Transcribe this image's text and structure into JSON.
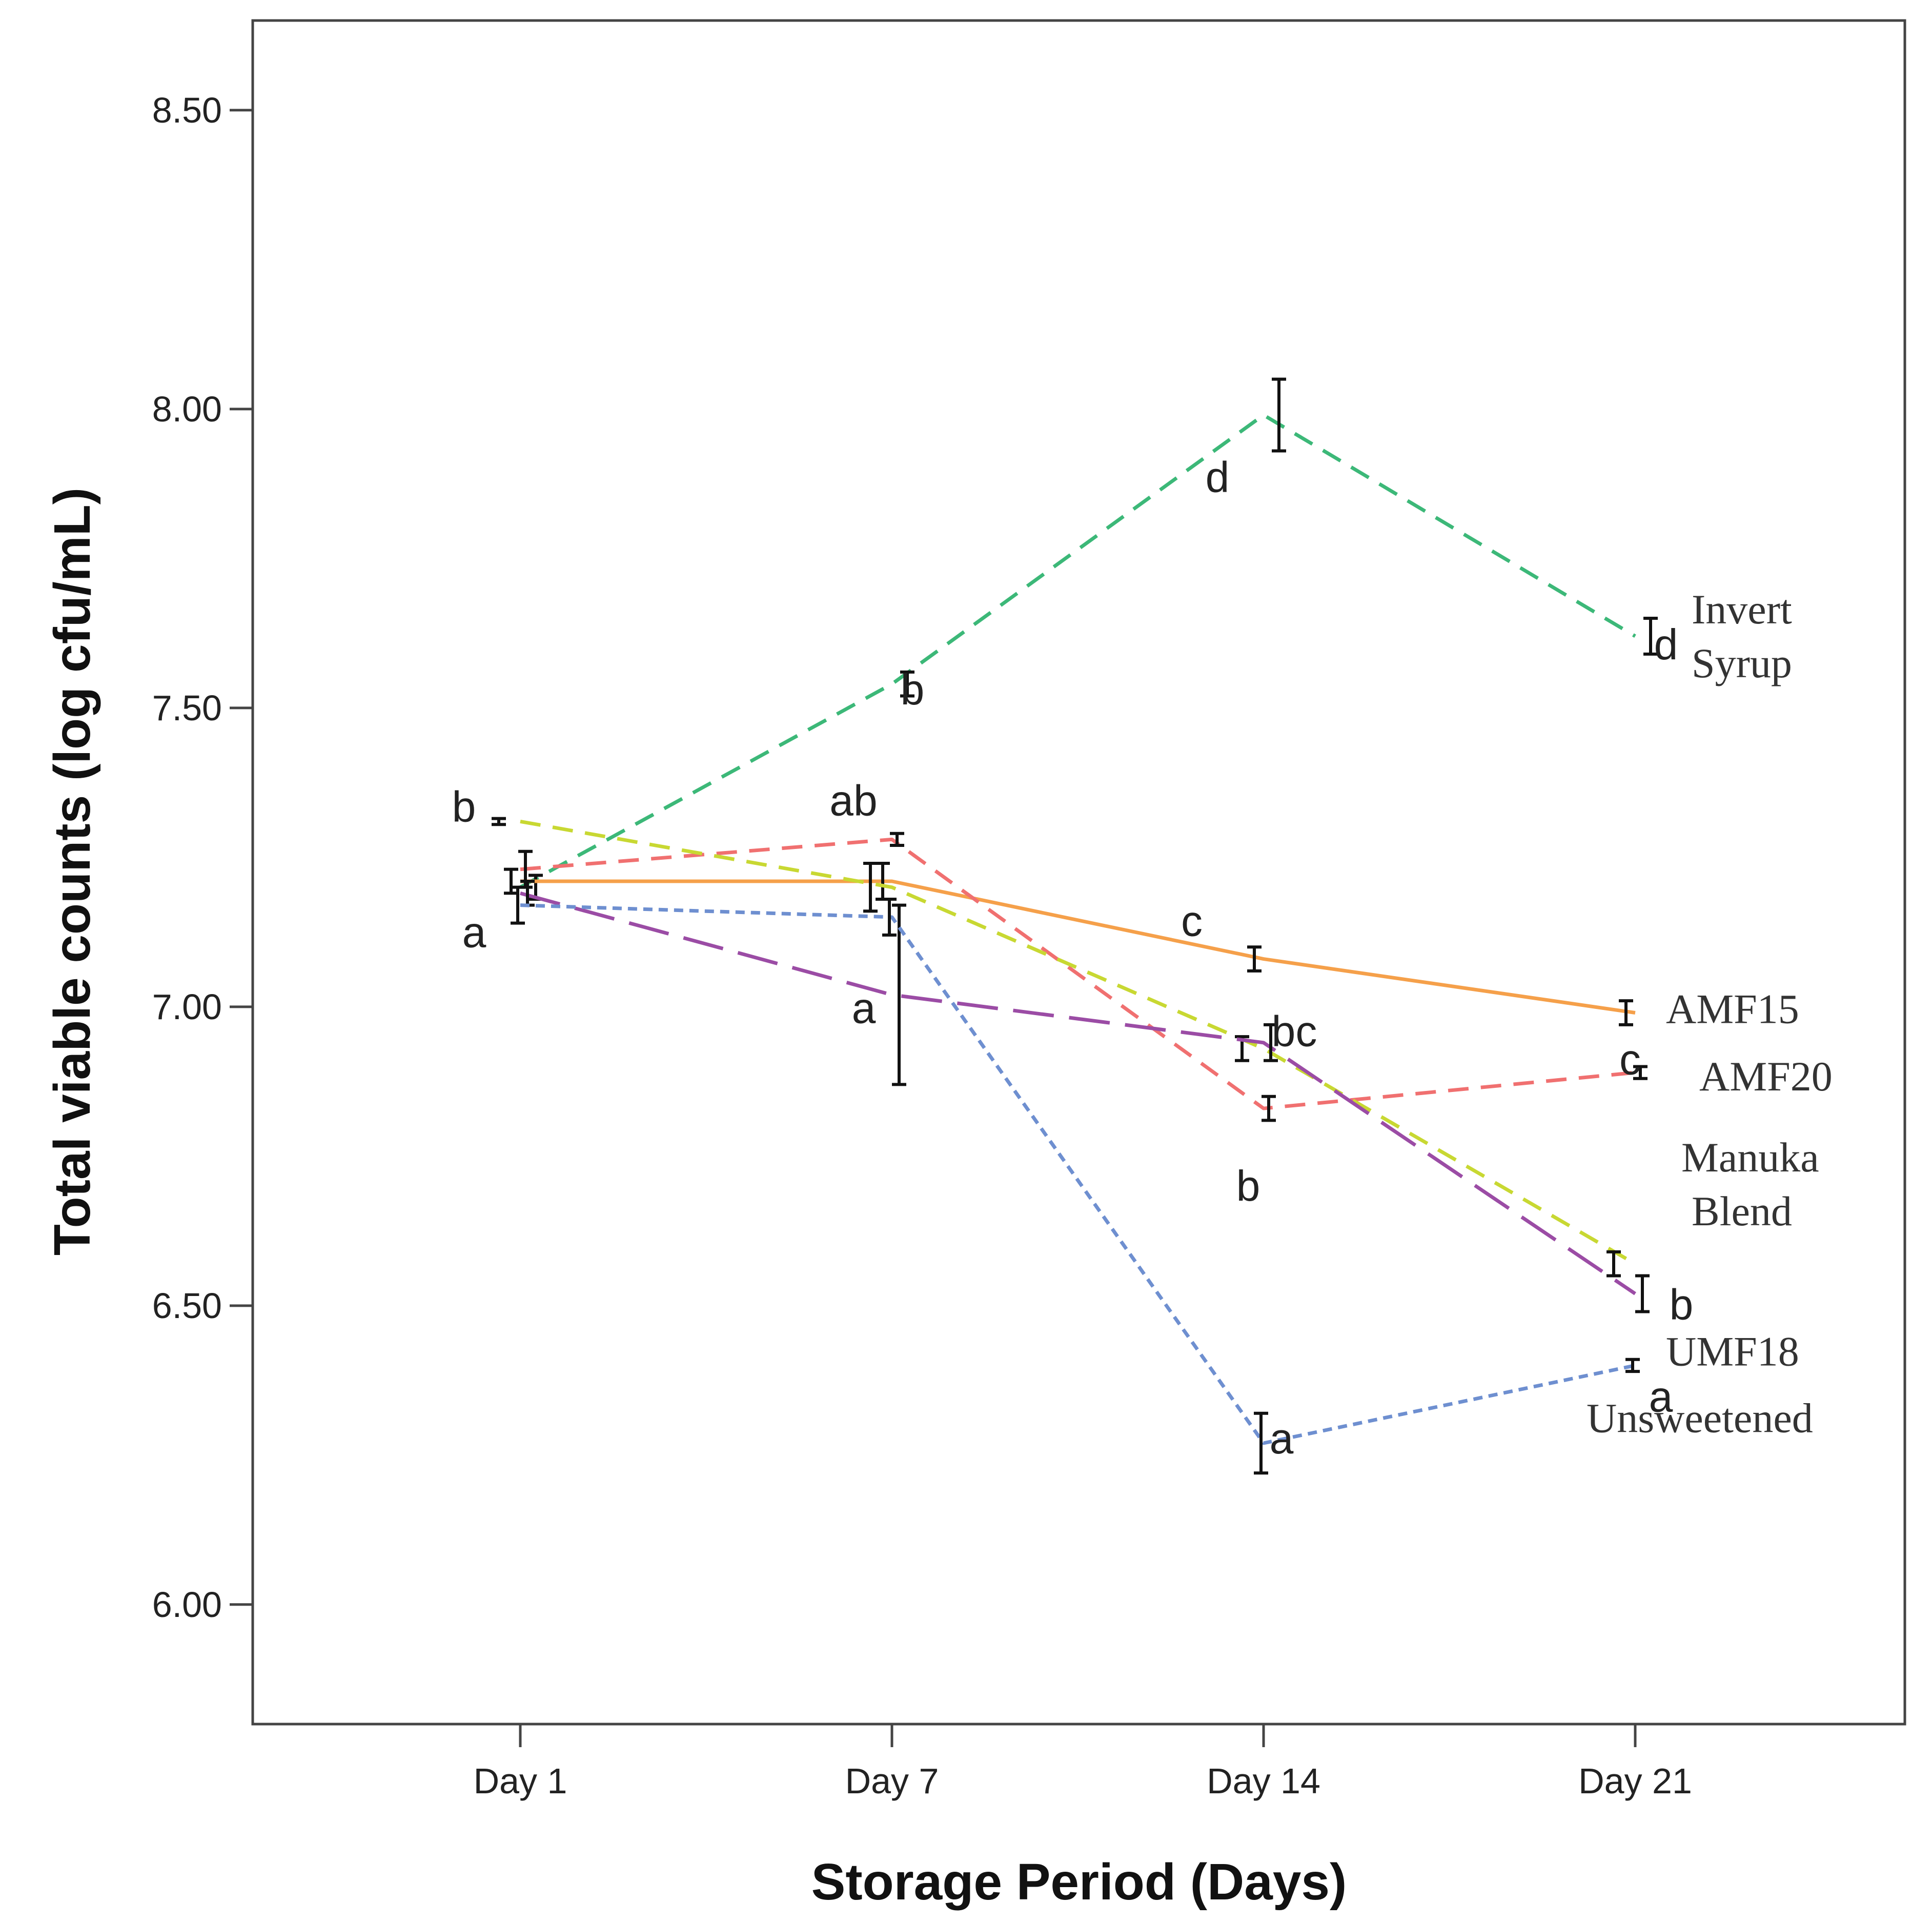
{
  "chart_data": {
    "type": "line",
    "xlabel": "Storage Period (Days)",
    "ylabel": "Total viable counts (log cfu/mL)",
    "ylim": [
      5.8,
      8.65
    ],
    "yticks": [
      6.0,
      6.5,
      7.0,
      7.5,
      8.0,
      8.5
    ],
    "ytick_labels": [
      "6.00",
      "6.50",
      "7.00",
      "7.50",
      "8.00",
      "8.50"
    ],
    "categories": [
      "Day 1",
      "Day 7",
      "Day 14",
      "Day 21"
    ],
    "grid": false,
    "legend": "none",
    "series": [
      {
        "name": "Invert Syrup",
        "label_lines": [
          "Invert",
          "Syrup"
        ],
        "color": "#3cb878",
        "dash": "dashed",
        "values": [
          7.2,
          7.54,
          7.99,
          7.62
        ],
        "errors": [
          0.02,
          0.02,
          0.06,
          0.03
        ],
        "letters": [
          "a",
          "b",
          "d",
          "d"
        ]
      },
      {
        "name": "AMF15",
        "label_lines": [
          "AMF15"
        ],
        "color": "#f5a04a",
        "dash": "solid",
        "values": [
          7.21,
          7.21,
          7.08,
          6.99
        ],
        "errors": [
          0.02,
          0.03,
          0.02,
          0.02
        ],
        "letters": [
          "a",
          "ab",
          "c",
          "c"
        ]
      },
      {
        "name": "AMF20",
        "label_lines": [
          "AMF20"
        ],
        "color": "#f07070",
        "dash": "dashed",
        "values": [
          7.23,
          7.28,
          6.83,
          6.89
        ],
        "errors": [
          0.03,
          0.01,
          0.02,
          0.01
        ],
        "letters": [
          "a",
          "ab",
          "b",
          "b"
        ]
      },
      {
        "name": "Manuka Blend",
        "label_lines": [
          "Manuka",
          "Blend"
        ],
        "color": "#c8d832",
        "dash": "dashed",
        "values": [
          7.31,
          7.2,
          6.93,
          6.57
        ],
        "errors": [
          0.005,
          0.04,
          0.02,
          0.02
        ],
        "letters": [
          "b",
          "ab",
          "bc",
          "b"
        ]
      },
      {
        "name": "UMF18",
        "label_lines": [
          "UMF18"
        ],
        "color": "#9b4ca5",
        "dash": "longdash",
        "values": [
          7.19,
          7.02,
          6.94,
          6.52
        ],
        "errors": [
          0.02,
          0.15,
          0.03,
          0.03
        ],
        "letters": [
          "a",
          "a",
          "bc",
          "b"
        ]
      },
      {
        "name": "Unsweetened",
        "label_lines": [
          "Unsweetened"
        ],
        "color": "#6e8fd0",
        "dash": "dotted",
        "values": [
          7.17,
          7.15,
          6.27,
          6.4
        ],
        "errors": [
          0.03,
          0.03,
          0.05,
          0.01
        ],
        "letters": [
          "a",
          "a",
          "a",
          "a"
        ]
      }
    ]
  }
}
